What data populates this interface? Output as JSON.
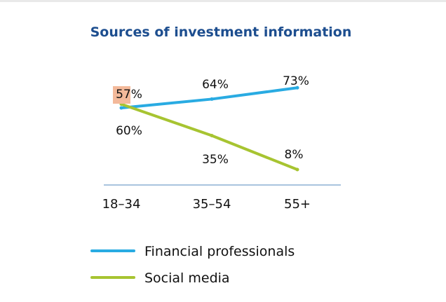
{
  "chart_data": {
    "type": "line",
    "title": "Sources of investment information",
    "categories": [
      "18–34",
      "35–54",
      "55+"
    ],
    "series": [
      {
        "name": "Financial professionals",
        "values": [
          57,
          64,
          73
        ],
        "labels": [
          "57%",
          "64%",
          "73%"
        ],
        "color": "#29abe2"
      },
      {
        "name": "Social media",
        "values": [
          60,
          35,
          8
        ],
        "labels": [
          "60%",
          "35%",
          "8%"
        ],
        "color": "#a7c431"
      }
    ],
    "highlight_color": "#f3b99a",
    "axis_color": "#a9c4de",
    "grid": false,
    "legend_position": "bottom"
  }
}
